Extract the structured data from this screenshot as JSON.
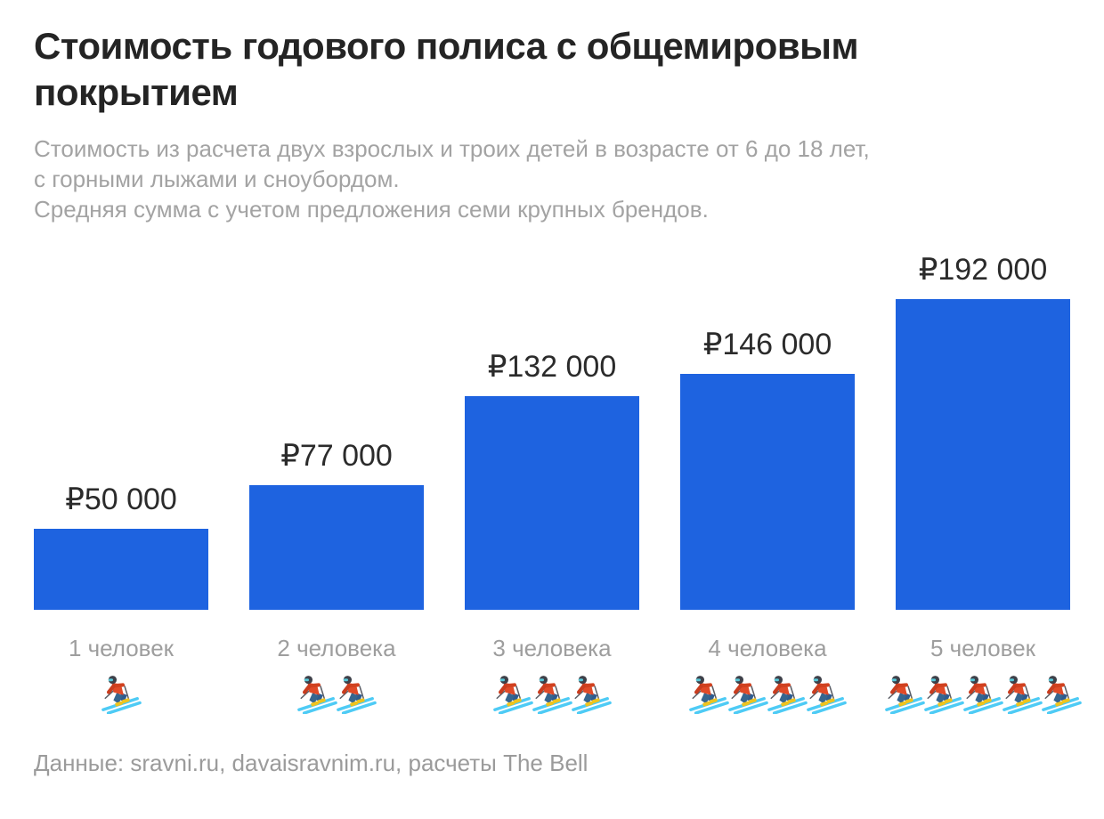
{
  "title": "Стоимость годового полиса с общемировым покрытием",
  "subtitle_lines": [
    "Стоимость из расчета двух взрослых и троих детей в возрасте от 6 до 18 лет,",
    "с горными лыжами и сноубордом.",
    "Средняя сумма с учетом предложения семи крупных брендов."
  ],
  "footer": "Данные: sravni.ru, davaisravnim.ru, расчеты The Bell",
  "chart_data": {
    "type": "bar",
    "title": "Стоимость годового полиса с общемировым покрытием",
    "categories": [
      "1 человек",
      "2 человека",
      "3 человека",
      "4 человека",
      "5 человек"
    ],
    "values": [
      50000,
      77000,
      132000,
      146000,
      192000
    ],
    "value_labels": [
      "₽50 000",
      "₽77 000",
      "₽132 000",
      "₽146 000",
      "₽192 000"
    ],
    "skier_counts": [
      1,
      2,
      3,
      4,
      5
    ],
    "currency": "RUB",
    "xlabel": "",
    "ylabel": "",
    "ylim": [
      0,
      220000
    ],
    "grid": false,
    "legend": "none",
    "bar_color": "#1e63e0"
  },
  "colors": {
    "bar_blue": "#1e63e0",
    "title_text": "#242424",
    "value_text": "#2b2b2b",
    "muted_text": "#9e9e9e",
    "ski_cyan": "#4ecbf5",
    "jacket_red": "#e04a28",
    "pants_blue": "#2e5b8f",
    "boot_yellow": "#efc31d",
    "helmet_dark": "#3e4049"
  }
}
